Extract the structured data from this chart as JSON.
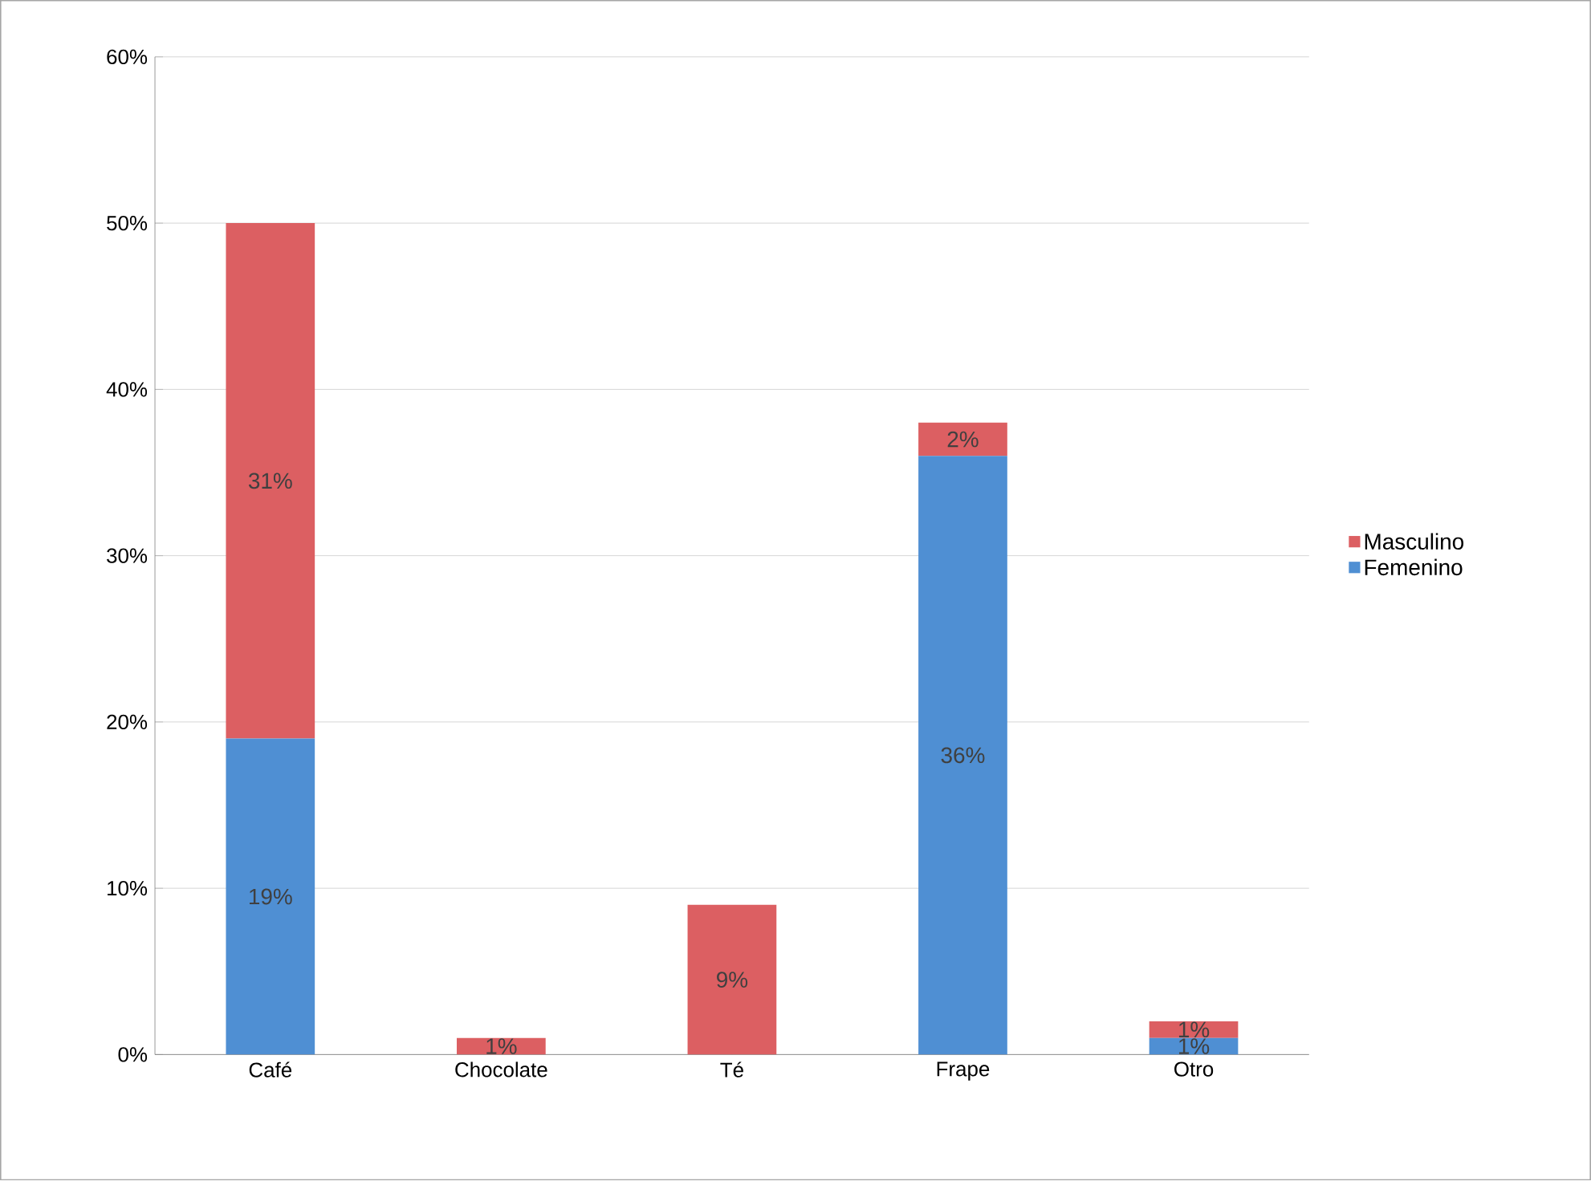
{
  "chart_data": {
    "type": "bar",
    "stacked": true,
    "categories": [
      "Café",
      "Chocolate",
      "Té",
      "Frape",
      "Otro"
    ],
    "series": [
      {
        "name": "Femenino",
        "color": "#4f8fd3",
        "values": [
          19,
          0,
          0,
          36,
          1
        ],
        "value_labels": [
          "19%",
          null,
          null,
          "36%",
          "1%"
        ]
      },
      {
        "name": "Masculino",
        "color": "#dc5f62",
        "values": [
          31,
          1,
          9,
          2,
          1
        ],
        "value_labels": [
          "31%",
          "1%",
          "9%",
          "2%",
          "1%"
        ]
      }
    ],
    "ylim": [
      0,
      60
    ],
    "yticks": [
      {
        "value": 0,
        "label": "0%"
      },
      {
        "value": 10,
        "label": "10%"
      },
      {
        "value": 20,
        "label": "20%"
      },
      {
        "value": 30,
        "label": "30%"
      },
      {
        "value": 40,
        "label": "40%"
      },
      {
        "value": 50,
        "label": "50%"
      },
      {
        "value": 60,
        "label": "60%"
      }
    ],
    "grid": "y",
    "legend": "right"
  }
}
